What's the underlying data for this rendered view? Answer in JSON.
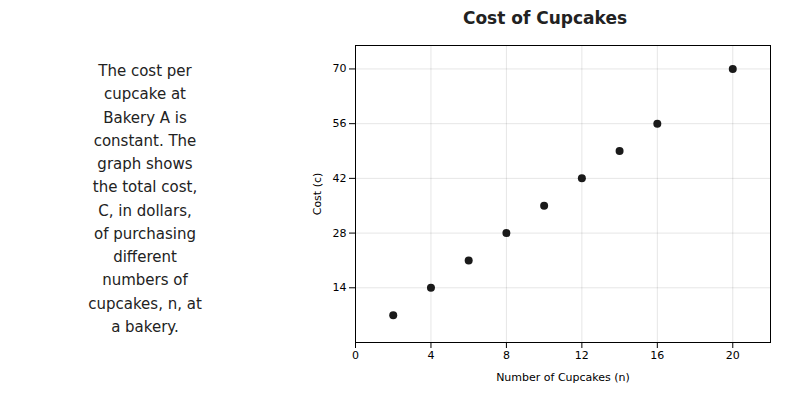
{
  "chart_data": {
    "type": "scatter",
    "title": "Cost of Cupcakes",
    "x_label": "Number of Cupcakes (n)",
    "y_label": "Cost (c)",
    "annotations": [
      "The cost per",
      "cupcake at",
      "Bakery A is",
      "constant. The",
      "graph shows",
      "the total cost,",
      "C, in dollars,",
      "of purchasing",
      "different",
      "numbers of",
      "cupcakes, n, at",
      "a bakery."
    ],
    "x": [
      2,
      4,
      6,
      8,
      10,
      12,
      14,
      16,
      20
    ],
    "values": [
      7,
      14,
      21,
      28,
      35,
      42,
      49,
      56,
      70
    ],
    "color": "#1a1a1a",
    "xlim": [
      0,
      22
    ],
    "ylim": [
      0,
      76
    ],
    "xticks": [
      0,
      4,
      8,
      12,
      16,
      20
    ],
    "yticks": [
      14,
      28,
      42,
      56,
      70
    ],
    "grid": true
  }
}
